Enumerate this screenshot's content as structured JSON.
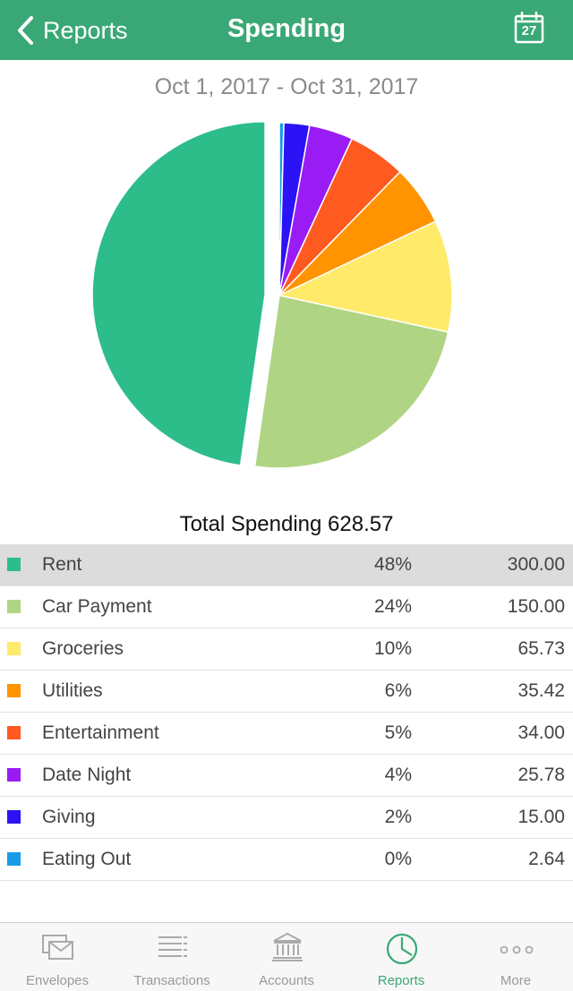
{
  "navbar": {
    "back_label": "Reports",
    "title": "Spending",
    "calendar_day": "27"
  },
  "report": {
    "date_range": "Oct 1, 2017 - Oct 31, 2017",
    "total_label": "Total Spending 628.57"
  },
  "chart_data": {
    "type": "pie",
    "categories": [
      "Rent",
      "Car Payment",
      "Groceries",
      "Utilities",
      "Entertainment",
      "Date Night",
      "Giving",
      "Eating Out"
    ],
    "values": [
      300.0,
      150.0,
      65.73,
      35.42,
      34.0,
      25.78,
      15.0,
      2.64
    ],
    "colors": [
      "#2dbd8a",
      "#afd584",
      "#ffea6a",
      "#ff9300",
      "#ff5a1f",
      "#9a1cf4",
      "#2b13f5",
      "#1a9be8"
    ],
    "exploded": "Rent"
  },
  "rows": [
    {
      "name": "Rent",
      "pct": "48%",
      "amount": "300.00",
      "color": "#2dbd8a",
      "selected": true
    },
    {
      "name": "Car Payment",
      "pct": "24%",
      "amount": "150.00",
      "color": "#afd584"
    },
    {
      "name": "Groceries",
      "pct": "10%",
      "amount": "65.73",
      "color": "#ffea6a"
    },
    {
      "name": "Utilities",
      "pct": "6%",
      "amount": "35.42",
      "color": "#ff9300"
    },
    {
      "name": "Entertainment",
      "pct": "5%",
      "amount": "34.00",
      "color": "#ff5a1f"
    },
    {
      "name": "Date Night",
      "pct": "4%",
      "amount": "25.78",
      "color": "#9a1cf4"
    },
    {
      "name": "Giving",
      "pct": "2%",
      "amount": "15.00",
      "color": "#2b13f5"
    },
    {
      "name": "Eating Out",
      "pct": "0%",
      "amount": "2.64",
      "color": "#1a9be8"
    }
  ],
  "tabbar": {
    "tabs": [
      {
        "label": "Envelopes",
        "icon": "envelopes-icon"
      },
      {
        "label": "Transactions",
        "icon": "transactions-icon"
      },
      {
        "label": "Accounts",
        "icon": "bank-icon"
      },
      {
        "label": "Reports",
        "icon": "pie-chart-icon",
        "active": true
      },
      {
        "label": "More",
        "icon": "more-dots-icon"
      }
    ]
  }
}
